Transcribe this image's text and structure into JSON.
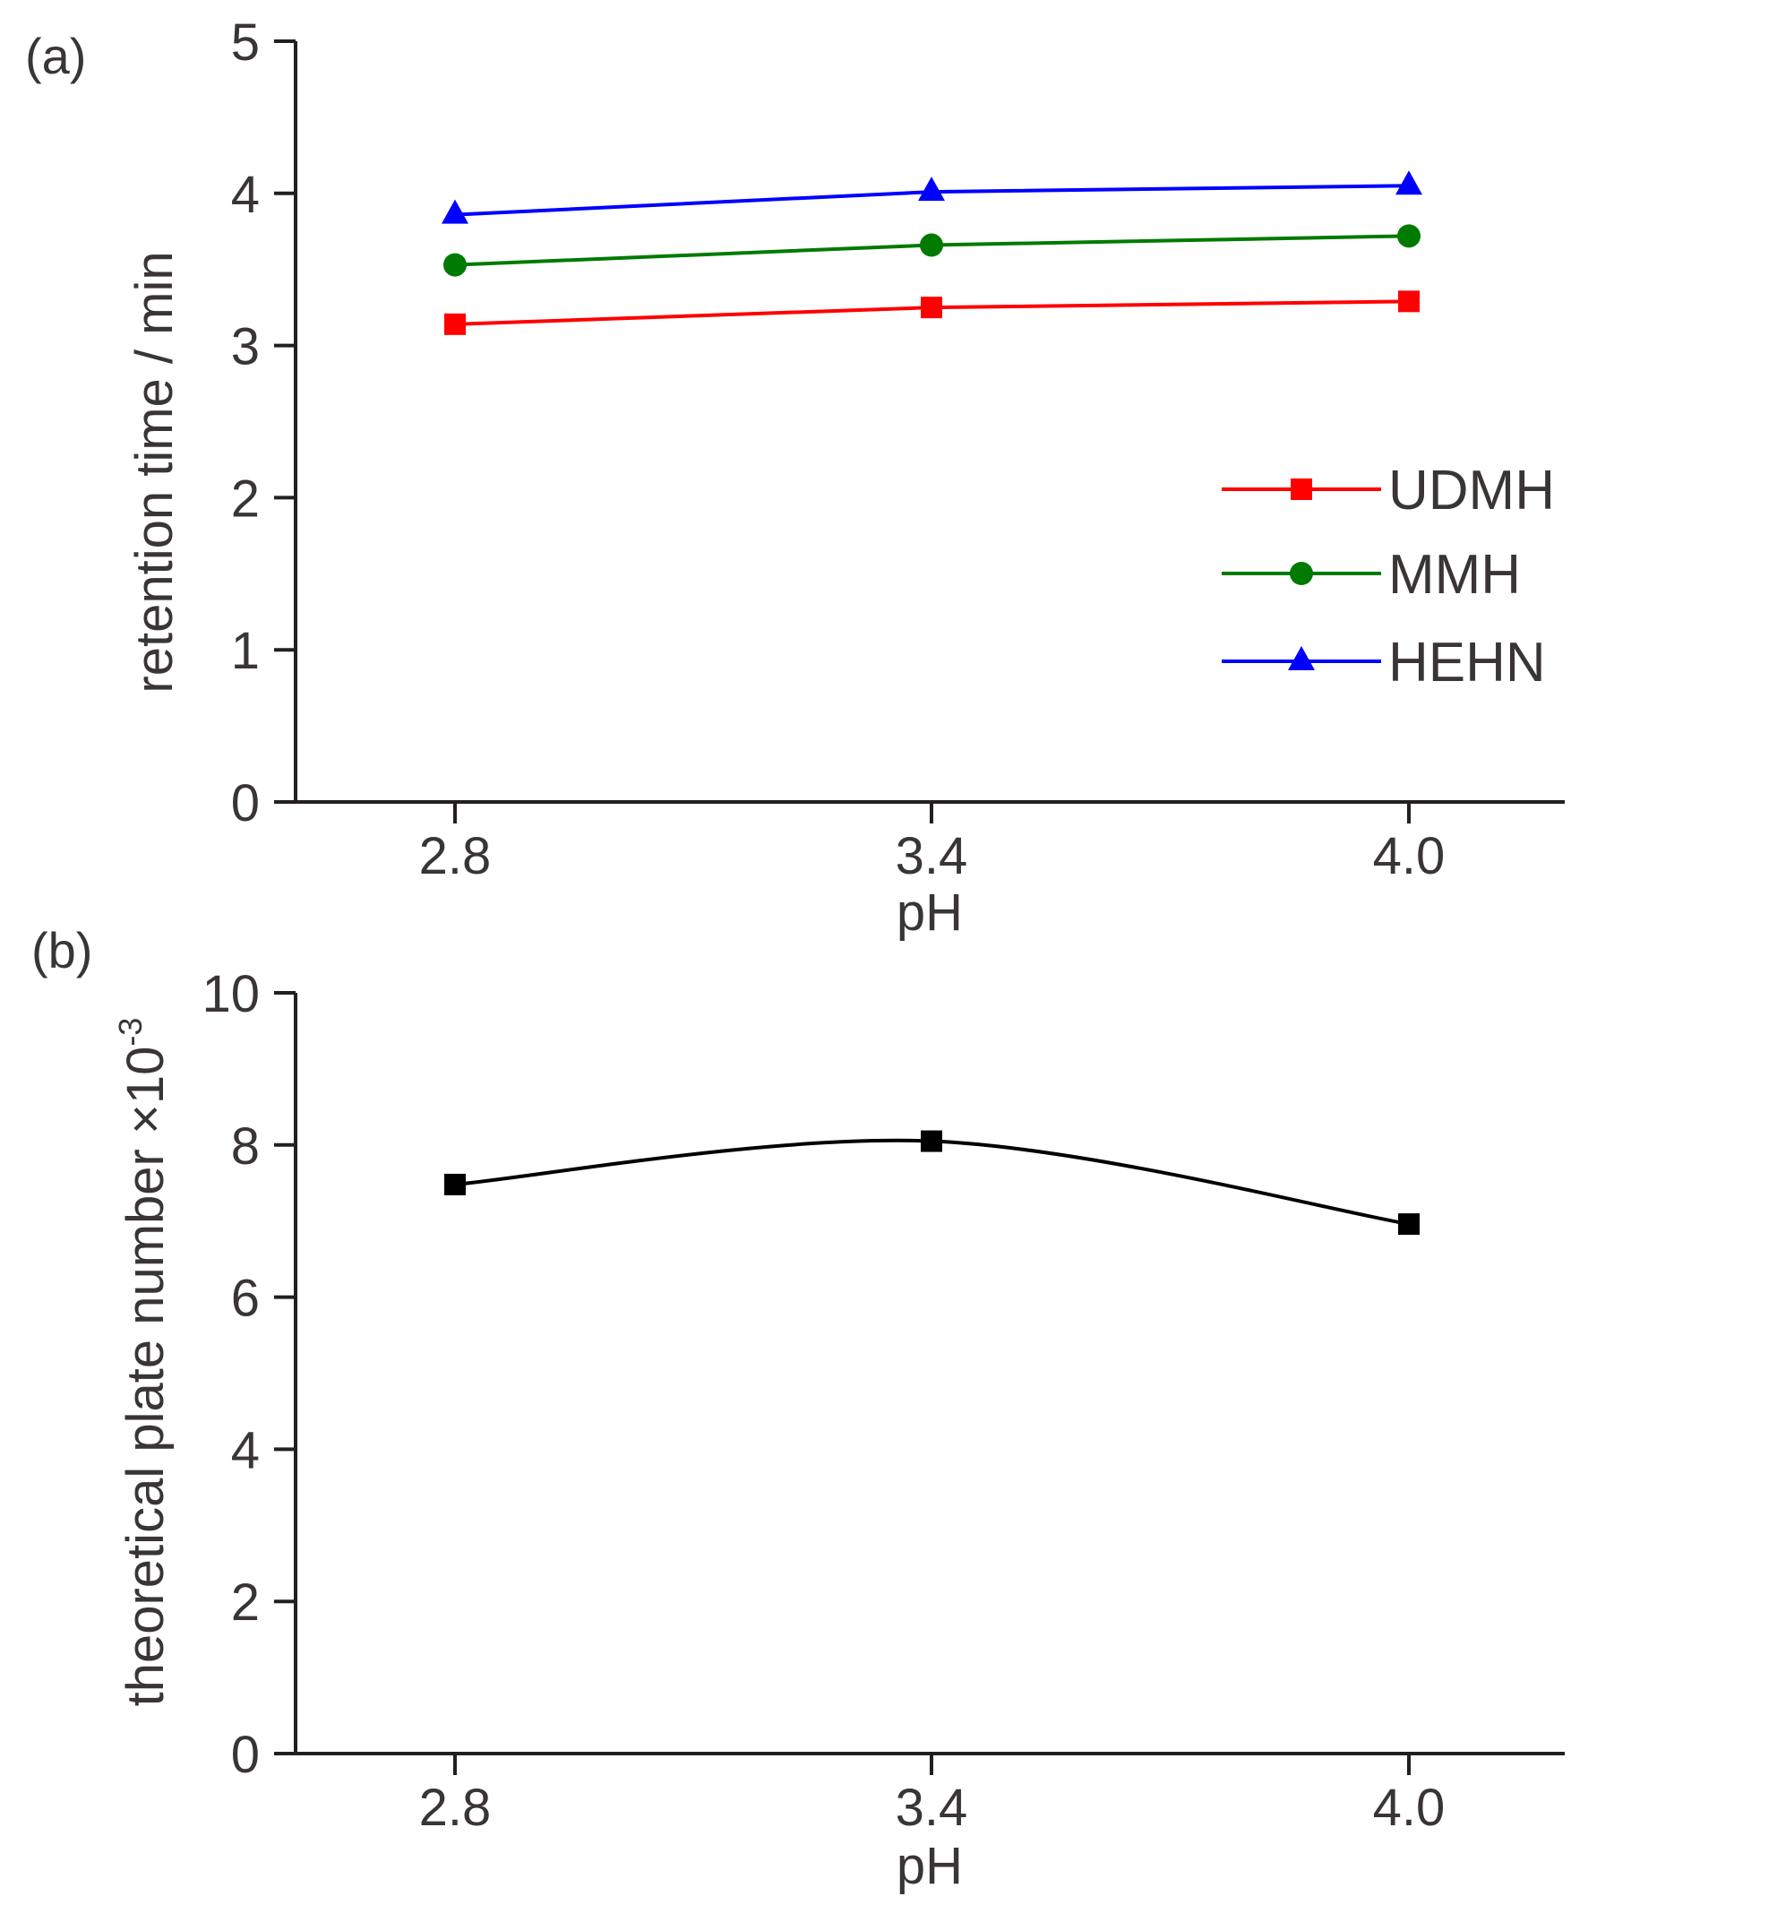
{
  "chart_data": [
    {
      "panel_label": "(a)",
      "type": "line",
      "x": [
        "2.8",
        "3.4",
        "4.0"
      ],
      "xlabel": "pH",
      "ylabel": "retention time / min",
      "ylim": [
        0,
        5
      ],
      "yticks": [
        "0",
        "1",
        "2",
        "3",
        "4",
        "5"
      ],
      "legend_position": "right",
      "grid": false,
      "series": [
        {
          "name": "UDMH",
          "values": [
            3.14,
            3.25,
            3.29
          ],
          "color": "#ff0000",
          "marker": "square"
        },
        {
          "name": "MMH",
          "values": [
            3.53,
            3.66,
            3.72
          ],
          "color": "#007a00",
          "marker": "circle"
        },
        {
          "name": "HEHN",
          "values": [
            3.86,
            4.01,
            4.05
          ],
          "color": "#0000ff",
          "marker": "triangle"
        }
      ]
    },
    {
      "panel_label": "(b)",
      "type": "line",
      "x": [
        "2.8",
        "3.4",
        "4.0"
      ],
      "xlabel": "pH",
      "ylabel": "theoretical plate number ×10",
      "ylabel_superscript": "-3",
      "ylim": [
        0,
        10
      ],
      "yticks": [
        "0",
        "2",
        "4",
        "6",
        "8",
        "10"
      ],
      "grid": false,
      "smooth": true,
      "series": [
        {
          "values": [
            7.48,
            8.05,
            6.96
          ],
          "color": "#000000",
          "marker": "square"
        }
      ]
    }
  ]
}
